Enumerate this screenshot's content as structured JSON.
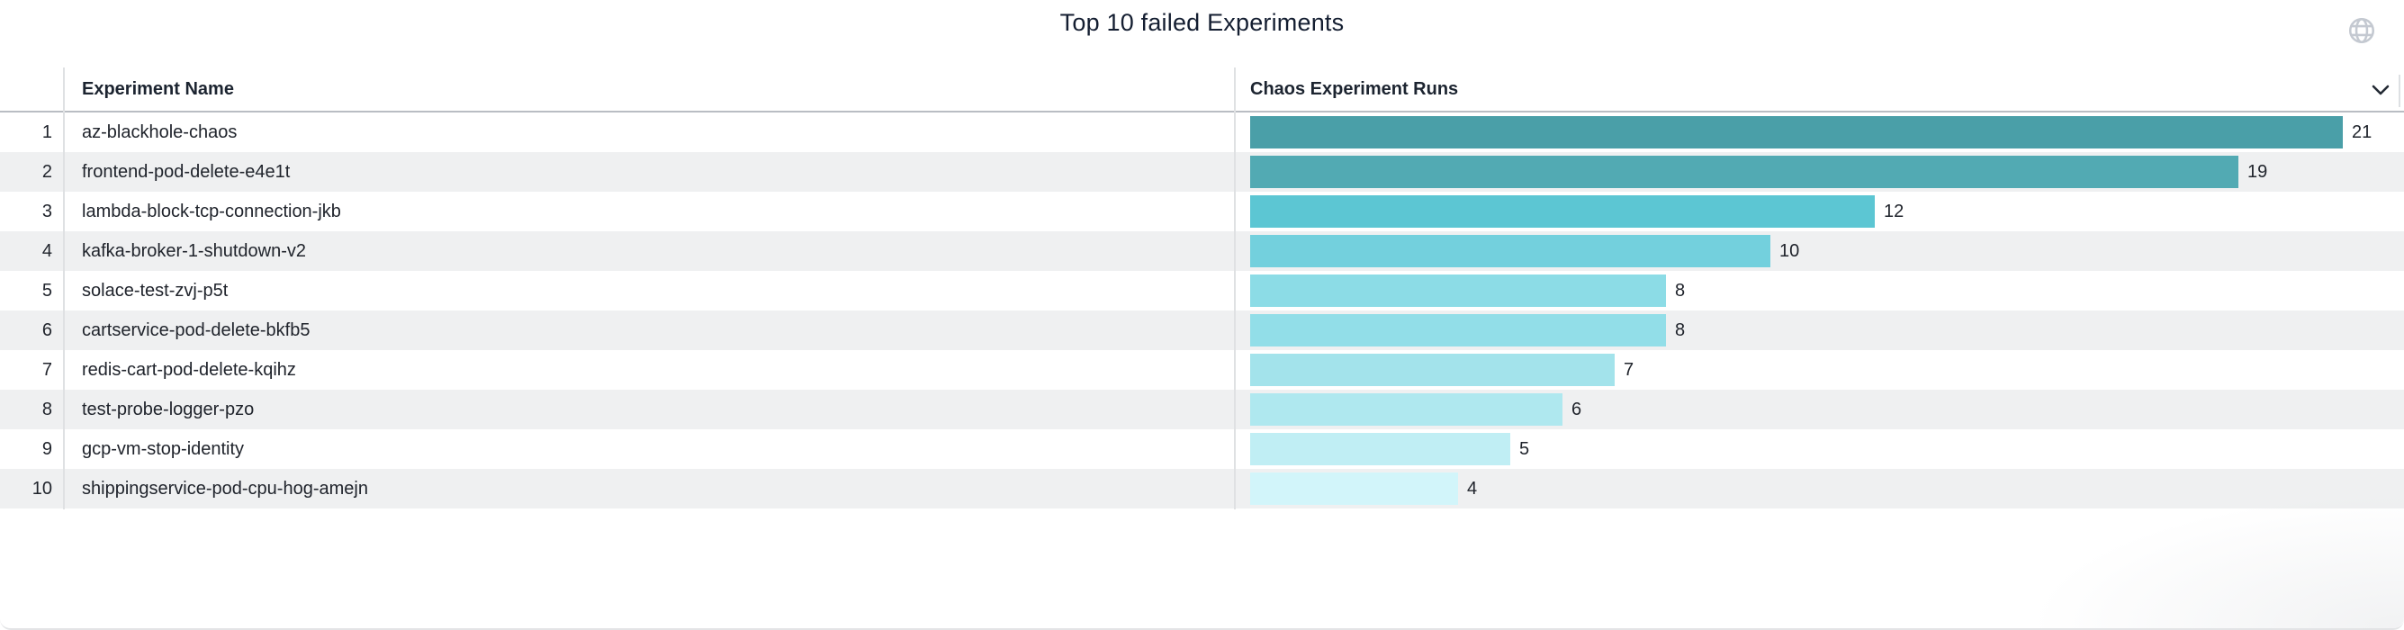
{
  "header": {
    "title": "Top 10 failed Experiments",
    "globe_icon": "globe",
    "sort_icon": "chevron-down"
  },
  "table": {
    "columns": [
      "Experiment Name",
      "Chaos Experiment Runs"
    ],
    "rows": [
      {
        "rank": "1",
        "name": "az-blackhole-chaos",
        "runs": 21
      },
      {
        "rank": "2",
        "name": "frontend-pod-delete-e4e1t",
        "runs": 19
      },
      {
        "rank": "3",
        "name": "lambda-block-tcp-connection-jkb",
        "runs": 12
      },
      {
        "rank": "4",
        "name": "kafka-broker-1-shutdown-v2",
        "runs": 10
      },
      {
        "rank": "5",
        "name": "solace-test-zvj-p5t",
        "runs": 8
      },
      {
        "rank": "6",
        "name": "cartservice-pod-delete-bkfb5",
        "runs": 8
      },
      {
        "rank": "7",
        "name": "redis-cart-pod-delete-kqihz",
        "runs": 7
      },
      {
        "rank": "8",
        "name": "test-probe-logger-pzo",
        "runs": 6
      },
      {
        "rank": "9",
        "name": "gcp-vm-stop-identity",
        "runs": 5
      },
      {
        "rank": "10",
        "name": "shippingservice-pod-cpu-hog-amejn",
        "runs": 4
      }
    ]
  },
  "chart_data": {
    "type": "bar",
    "orientation": "horizontal",
    "title": "Top 10 failed Experiments",
    "xlabel": "Chaos Experiment Runs",
    "ylabel": "Experiment Name",
    "categories": [
      "az-blackhole-chaos",
      "frontend-pod-delete-e4e1t",
      "lambda-block-tcp-connection-jkb",
      "kafka-broker-1-shutdown-v2",
      "solace-test-zvj-p5t",
      "cartservice-pod-delete-bkfb5",
      "redis-cart-pod-delete-kqihz",
      "test-probe-logger-pzo",
      "gcp-vm-stop-identity",
      "shippingservice-pod-cpu-hog-amejn"
    ],
    "values": [
      21,
      19,
      12,
      10,
      8,
      8,
      7,
      6,
      5,
      4
    ],
    "value_labels_shown": true,
    "xlim": [
      0,
      22
    ],
    "grid": false,
    "legend": "none",
    "bar_colors": [
      "#4A9FA8",
      "#52AAB3",
      "#5CC6D3",
      "#73D0DD",
      "#8CDCE6",
      "#92DEE8",
      "#A3E3EB",
      "#AFE8EF",
      "#C0EEF4",
      "#D2F5FA"
    ]
  },
  "colors": {
    "title_text": "#141e31",
    "header_text": "#1c2430",
    "body_text": "#20242c",
    "row_stripe": "#eff0f1",
    "header_border": "#b9bdc3",
    "column_divider": "#dfe1e3",
    "icon_gray": "#c4c9d1"
  }
}
